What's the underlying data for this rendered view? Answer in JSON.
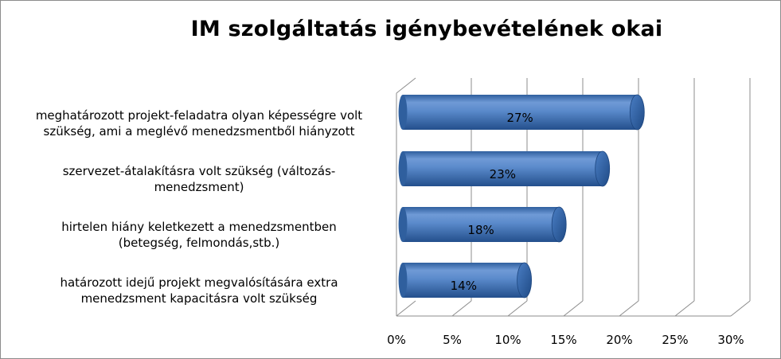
{
  "chart_data": {
    "type": "bar",
    "orientation": "horizontal",
    "style": "3d-cylinder",
    "title": "IM szolgáltatás igénybevételének okai",
    "categories": [
      [
        "meghatározott projekt-feladatra olyan képességre volt",
        "szükség, ami a meglévő menedzsmentből hiányzott"
      ],
      [
        "szervezet-átalakításra volt szükség (változás-",
        "menedzsment)"
      ],
      [
        "hirtelen hiány keletkezett a menedzsmentben",
        "(betegség, felmondás,stb.)"
      ],
      [
        "határozott idejű projekt megvalósítására extra",
        "menedzsment kapacitásra volt szükség"
      ]
    ],
    "values": [
      27,
      23,
      18,
      14
    ],
    "value_labels": [
      "27%",
      "23%",
      "18%",
      "14%"
    ],
    "xlim": [
      0,
      30
    ],
    "x_ticks": [
      "0%",
      "5%",
      "10%",
      "15%",
      "20%",
      "25%",
      "30%"
    ],
    "grid": true,
    "legend": "none",
    "bar_color": "#4a7ec4",
    "grid_color": "#8c8c8c"
  }
}
